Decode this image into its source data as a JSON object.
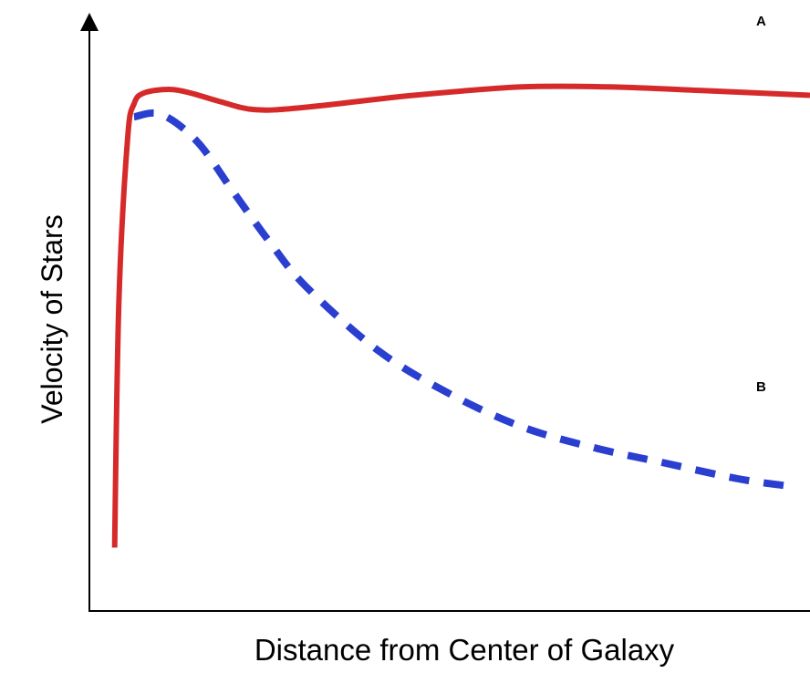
{
  "chart_data": {
    "type": "line",
    "title": "",
    "xlabel": "Distance from Center of Galaxy",
    "ylabel": "Velocity of Stars",
    "xlim": [
      0,
      100
    ],
    "ylim": [
      0,
      100
    ],
    "grid": false,
    "series": [
      {
        "name": "A",
        "color": "#d62a2a",
        "style": "solid",
        "points": [
          [
            3.5,
            10.6
          ],
          [
            4.1,
            52
          ],
          [
            5.3,
            79
          ],
          [
            6.2,
            84.8
          ],
          [
            7.6,
            86.6
          ],
          [
            11,
            87.2
          ],
          [
            14,
            86.6
          ],
          [
            18,
            85.2
          ],
          [
            23,
            83.8
          ],
          [
            30,
            84.2
          ],
          [
            45,
            86.2
          ],
          [
            60,
            87.6
          ],
          [
            72,
            87.6
          ],
          [
            85,
            87
          ],
          [
            100,
            86.2
          ]
        ]
      },
      {
        "name": "B",
        "color": "#2a3fcf",
        "style": "dashed",
        "points": [
          [
            6.2,
            82.6
          ],
          [
            10,
            83
          ],
          [
            15,
            78.4
          ],
          [
            20,
            70
          ],
          [
            25,
            61.7
          ],
          [
            30,
            54.3
          ],
          [
            40,
            43.6
          ],
          [
            50,
            36.3
          ],
          [
            60,
            30.8
          ],
          [
            70,
            27.3
          ],
          [
            80,
            24.7
          ],
          [
            90,
            22.1
          ],
          [
            97,
            20.9
          ]
        ]
      }
    ]
  }
}
